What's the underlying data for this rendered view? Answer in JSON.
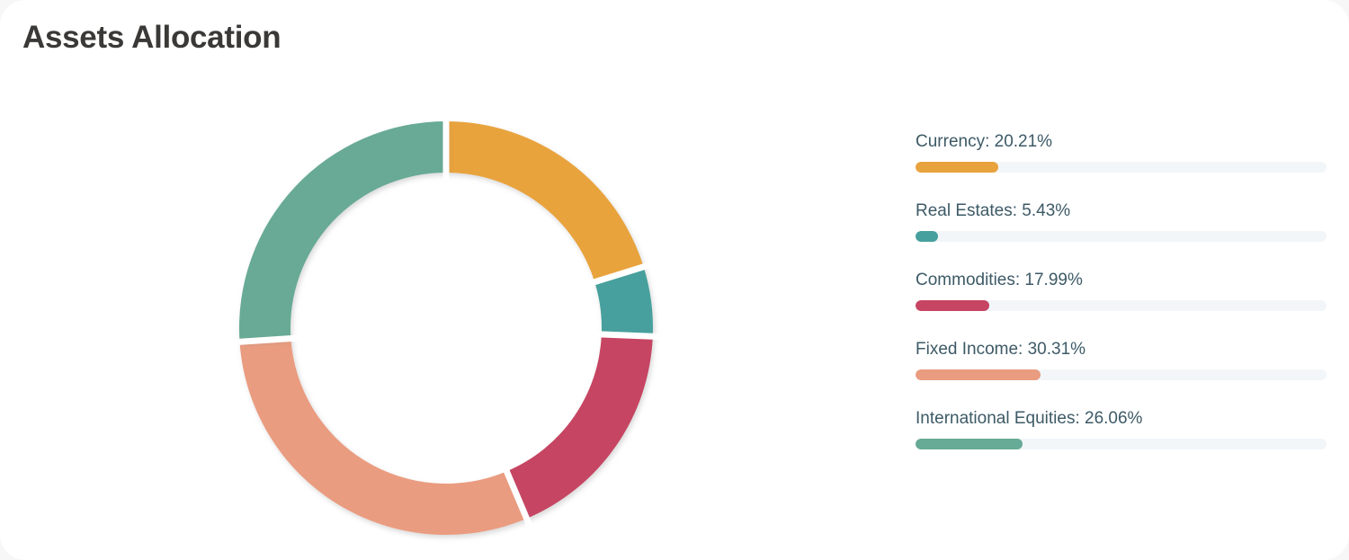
{
  "page_title": "Assets Allocation",
  "colors": {
    "page_background": "#f7f7f7",
    "card_background": "#ffffff",
    "title_text": "#3a3937",
    "legend_text": "#3d5a66",
    "legend_track": "#f2f6f9",
    "slice_gap": "#ffffff",
    "slice_shadow": "#8a8a8a"
  },
  "chart_data": {
    "type": "pie",
    "subtype": "donut",
    "title": "Assets Allocation",
    "direction": "clockwise",
    "start_angle_deg": 0,
    "inner_radius_ratio": 0.75,
    "legend_position": "right",
    "series": [
      {
        "label": "Currency",
        "value": 20.21,
        "color": "#e8a33d",
        "legend_text": "Currency: 20.21%"
      },
      {
        "label": "Real Estates",
        "value": 5.43,
        "color": "#46a09d",
        "legend_text": "Real Estates: 5.43%"
      },
      {
        "label": "Commodities",
        "value": 17.99,
        "color": "#c64562",
        "legend_text": "Commodities: 17.99%"
      },
      {
        "label": "Fixed Income",
        "value": 30.31,
        "color": "#ea9c80",
        "legend_text": "Fixed Income: 30.31%"
      },
      {
        "label": "International Equities",
        "value": 26.06,
        "color": "#67aa95",
        "legend_text": "International Equities: 26.06%"
      }
    ]
  }
}
